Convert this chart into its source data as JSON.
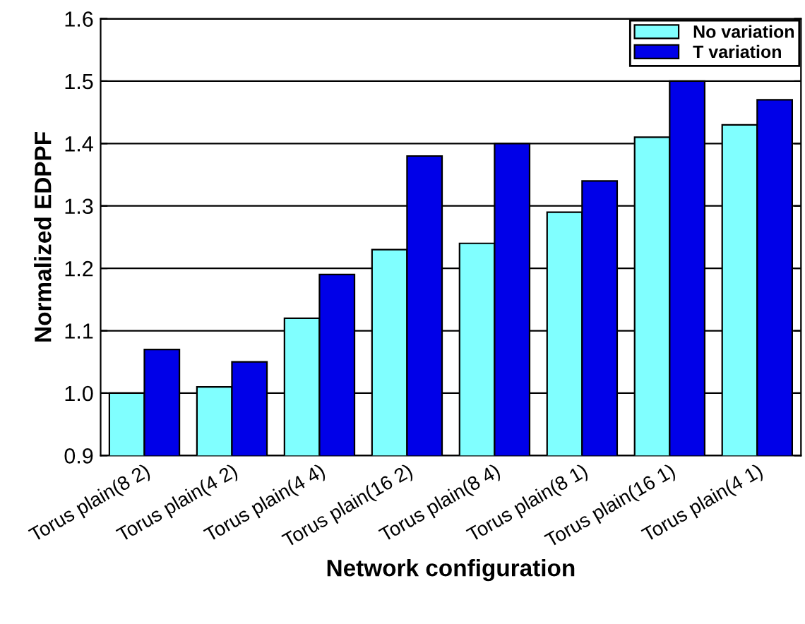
{
  "chart_data": {
    "type": "bar",
    "xlabel": "Network configuration",
    "ylabel": "Normalized EDPPF",
    "categories": [
      "Torus plain(8 2)",
      "Torus plain(4 2)",
      "Torus plain(4 4)",
      "Torus plain(16 2)",
      "Torus plain(8 4)",
      "Torus plain(8 1)",
      "Torus plain(16 1)",
      "Torus plain(4 1)"
    ],
    "series": [
      {
        "name": "No variation",
        "color": "#80ffff",
        "values": [
          1.0,
          1.01,
          1.12,
          1.23,
          1.24,
          1.29,
          1.41,
          1.43
        ]
      },
      {
        "name": "T variation",
        "color": "#0000e8",
        "values": [
          1.07,
          1.05,
          1.19,
          1.38,
          1.4,
          1.34,
          1.5,
          1.47
        ]
      }
    ],
    "ylim": [
      0.9,
      1.6
    ],
    "yticks": [
      {
        "value": 0.9,
        "label": "0.9"
      },
      {
        "value": 1.0,
        "label": "1.0"
      },
      {
        "value": 1.1,
        "label": "1.1"
      },
      {
        "value": 1.2,
        "label": "1.2"
      },
      {
        "value": 1.3,
        "label": "1.3"
      },
      {
        "value": 1.4,
        "label": "1.4"
      },
      {
        "value": 1.5,
        "label": "1.5"
      },
      {
        "value": 1.6,
        "label": "1.6"
      }
    ],
    "grid": "y",
    "legend": "top right"
  }
}
